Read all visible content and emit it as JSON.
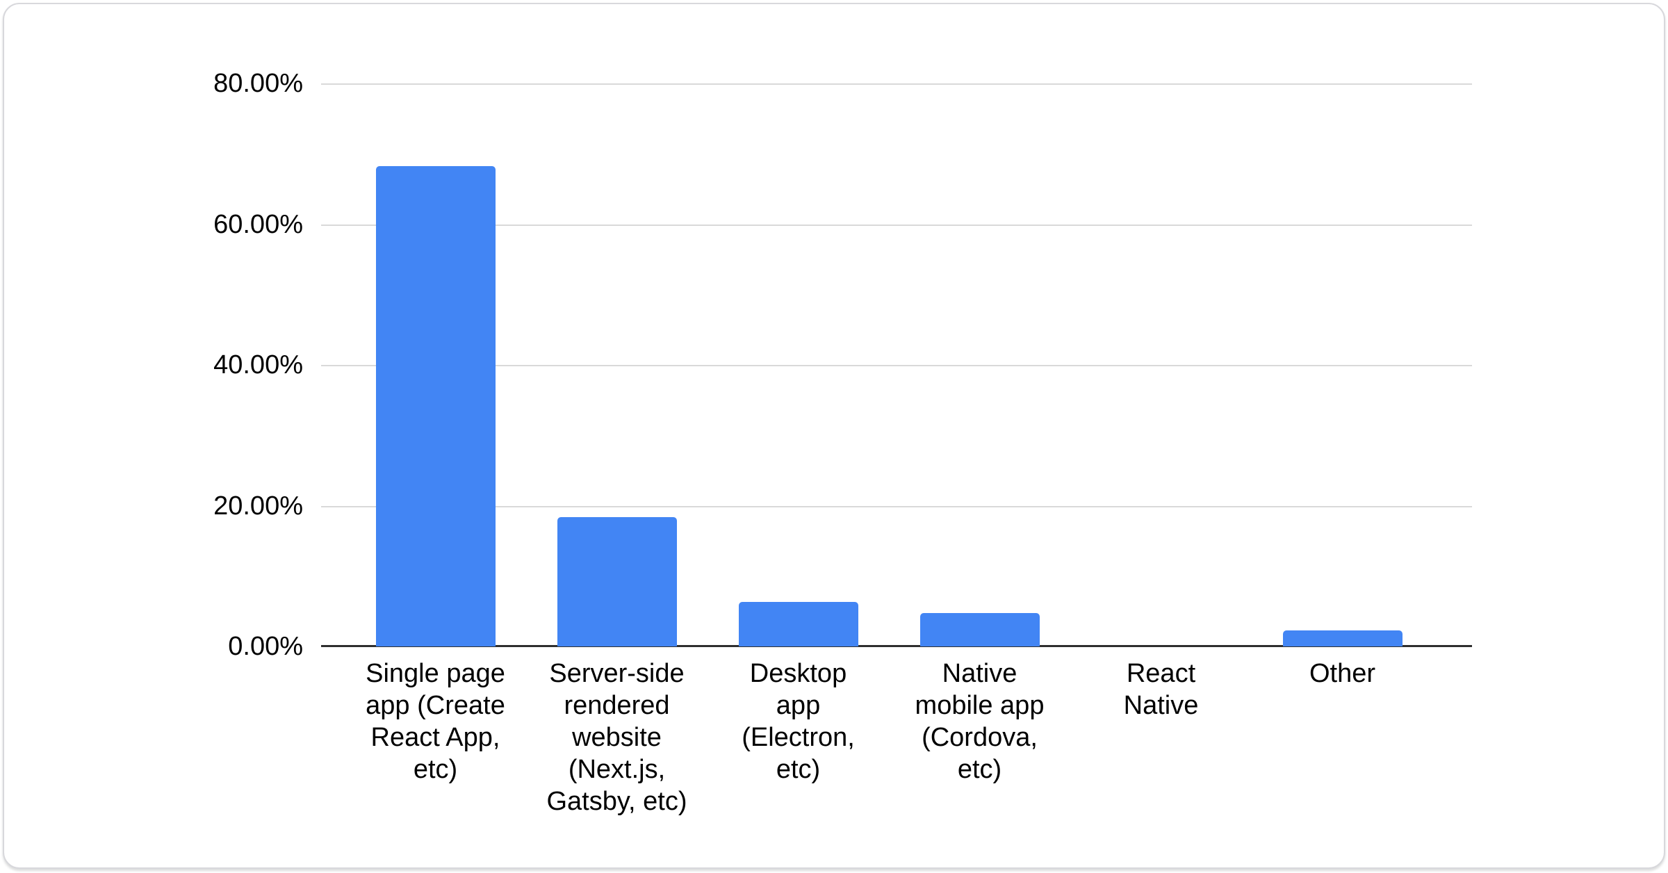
{
  "chart_data": {
    "type": "bar",
    "categories": [
      "Single page app (Create React App, etc)",
      "Server-side rendered website (Next.js, Gatsby, etc)",
      "Desktop app (Electron, etc)",
      "Native mobile app (Cordova, etc)",
      "React Native",
      "Other"
    ],
    "category_lines": [
      [
        "Single page",
        "app (Create",
        "React App,",
        "etc)"
      ],
      [
        "Server-side",
        "rendered",
        "website",
        "(Next.js,",
        "Gatsby, etc)"
      ],
      [
        "Desktop",
        "app",
        "(Electron,",
        "etc)"
      ],
      [
        "Native",
        "mobile app",
        "(Cordova,",
        "etc)"
      ],
      [
        "React",
        "Native"
      ],
      [
        "Other"
      ]
    ],
    "values": [
      68.2,
      18.4,
      6.3,
      4.7,
      0,
      2.3
    ],
    "unit": "%",
    "ylim": [
      0,
      80
    ],
    "y_ticks": [
      {
        "label": "80.00%",
        "value": 80
      },
      {
        "label": "60.00%",
        "value": 60
      },
      {
        "label": "40.00%",
        "value": 40
      },
      {
        "label": "20.00%",
        "value": 20
      },
      {
        "label": "0.00%",
        "value": 0
      }
    ],
    "grid": true,
    "legend_position": "none",
    "bar_color": "#4285f4",
    "gridline_color": "#d9d9d9",
    "axis_line_color": "#2e2e2e",
    "label_color": "#000000"
  }
}
